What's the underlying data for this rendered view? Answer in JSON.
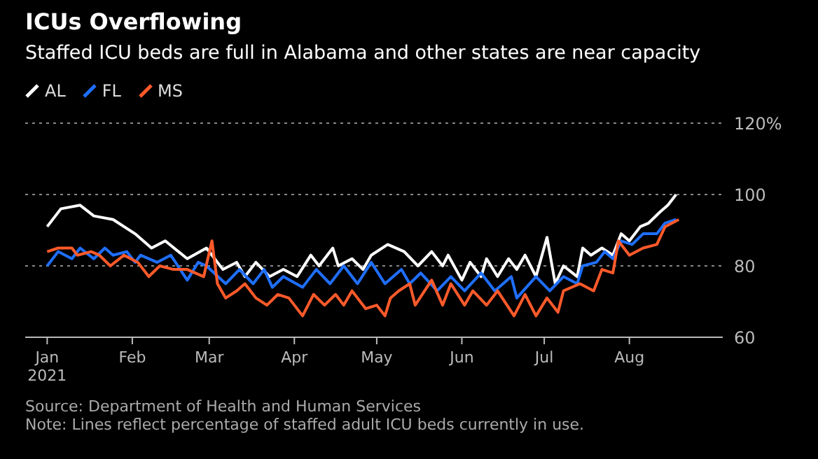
{
  "chart_data": {
    "type": "line",
    "title": "ICUs Overflowing",
    "subtitle": "Staffed ICU beds are full in Alabama and other states are near capacity",
    "annotations": [
      "Source: Department of Health and Human Services",
      "Note: Lines reflect percentage of staffed adult ICU beds currently in use."
    ],
    "legend": "top left",
    "grid": "y",
    "line_style": "solid",
    "xlim": [
      "2020-12-24",
      "2021-09-04"
    ],
    "xticks": [
      {
        "value": "2021-01-01",
        "label": "Jan\n2021"
      },
      {
        "value": "2021-02-01",
        "label": "Feb"
      },
      {
        "value": "2021-03-01",
        "label": "Mar"
      },
      {
        "value": "2021-04-01",
        "label": "Apr"
      },
      {
        "value": "2021-05-01",
        "label": "May"
      },
      {
        "value": "2021-06-01",
        "label": "Jun"
      },
      {
        "value": "2021-07-01",
        "label": "Jul"
      },
      {
        "value": "2021-08-01",
        "label": "Aug"
      }
    ],
    "ylim": [
      60,
      120
    ],
    "yticks": [
      60,
      80,
      100,
      {
        "value": 120,
        "label": "120%"
      }
    ],
    "series": [
      {
        "name": "AL",
        "color": "#ffffff",
        "x": [
          "2021-01-01",
          "2021-01-06",
          "2021-01-13",
          "2021-01-18",
          "2021-01-25",
          "2021-02-02",
          "2021-02-08",
          "2021-02-13",
          "2021-02-21",
          "2021-02-28",
          "2021-03-06",
          "2021-03-11",
          "2021-03-14",
          "2021-03-18",
          "2021-03-23",
          "2021-03-28",
          "2021-04-02",
          "2021-04-07",
          "2021-04-10",
          "2021-04-15",
          "2021-04-17",
          "2021-04-22",
          "2021-04-26",
          "2021-04-29",
          "2021-05-05",
          "2021-05-11",
          "2021-05-16",
          "2021-05-21",
          "2021-05-25",
          "2021-05-27",
          "2021-06-01",
          "2021-06-04",
          "2021-06-08",
          "2021-06-10",
          "2021-06-14",
          "2021-06-18",
          "2021-06-21",
          "2021-06-24",
          "2021-06-28",
          "2021-07-02",
          "2021-07-05",
          "2021-07-08",
          "2021-07-13",
          "2021-07-15",
          "2021-07-18",
          "2021-07-22",
          "2021-07-26",
          "2021-07-29",
          "2021-08-01",
          "2021-08-05",
          "2021-08-08",
          "2021-08-12",
          "2021-08-15",
          "2021-08-18"
        ],
        "values": [
          91,
          96,
          97,
          94,
          93,
          89,
          85,
          87,
          82,
          85,
          79,
          81,
          77,
          81,
          77,
          79,
          77,
          83,
          80,
          85,
          80,
          82,
          79,
          83,
          86,
          84,
          80,
          84,
          80,
          83,
          76,
          81,
          77,
          82,
          77,
          82,
          79,
          83,
          77,
          88,
          75,
          80,
          77,
          85,
          83,
          85,
          83,
          89,
          87,
          91,
          92,
          95,
          97,
          100
        ]
      },
      {
        "name": "FL",
        "color": "#1f6fff",
        "x": [
          "2021-01-01",
          "2021-01-05",
          "2021-01-10",
          "2021-01-13",
          "2021-01-18",
          "2021-01-22",
          "2021-01-25",
          "2021-01-30",
          "2021-02-02",
          "2021-02-04",
          "2021-02-10",
          "2021-02-15",
          "2021-02-21",
          "2021-02-25",
          "2021-02-28",
          "2021-03-07",
          "2021-03-12",
          "2021-03-17",
          "2021-03-21",
          "2021-03-24",
          "2021-03-28",
          "2021-04-04",
          "2021-04-09",
          "2021-04-14",
          "2021-04-19",
          "2021-04-24",
          "2021-04-29",
          "2021-05-04",
          "2021-05-10",
          "2021-05-13",
          "2021-05-17",
          "2021-05-23",
          "2021-05-28",
          "2021-06-02",
          "2021-06-08",
          "2021-06-13",
          "2021-06-19",
          "2021-06-21",
          "2021-06-28",
          "2021-07-03",
          "2021-07-08",
          "2021-07-13",
          "2021-07-15",
          "2021-07-20",
          "2021-07-23",
          "2021-07-26",
          "2021-07-29",
          "2021-08-02",
          "2021-08-06",
          "2021-08-11",
          "2021-08-14",
          "2021-08-18"
        ],
        "values": [
          80,
          84,
          82,
          85,
          82,
          85,
          83,
          84,
          81,
          83,
          81,
          83,
          76,
          81,
          80,
          75,
          79,
          75,
          79,
          74,
          77,
          74,
          79,
          75,
          80,
          75,
          81,
          75,
          79,
          75,
          78,
          73,
          77,
          73,
          78,
          73,
          77,
          71,
          77,
          73,
          77,
          75,
          80,
          81,
          84,
          82,
          87,
          86,
          89,
          89,
          92,
          93
        ]
      },
      {
        "name": "MS",
        "color": "#ff5a2a",
        "x": [
          "2021-01-01",
          "2021-01-05",
          "2021-01-10",
          "2021-01-12",
          "2021-01-17",
          "2021-01-20",
          "2021-01-24",
          "2021-01-29",
          "2021-02-03",
          "2021-02-07",
          "2021-02-11",
          "2021-02-16",
          "2021-02-21",
          "2021-02-27",
          "2021-03-02",
          "2021-03-04",
          "2021-03-07",
          "2021-03-11",
          "2021-03-14",
          "2021-03-18",
          "2021-03-22",
          "2021-03-26",
          "2021-03-30",
          "2021-04-04",
          "2021-04-08",
          "2021-04-12",
          "2021-04-16",
          "2021-04-19",
          "2021-04-22",
          "2021-04-27",
          "2021-05-01",
          "2021-05-04",
          "2021-05-06",
          "2021-05-09",
          "2021-05-13",
          "2021-05-15",
          "2021-05-21",
          "2021-05-25",
          "2021-05-28",
          "2021-06-02",
          "2021-06-05",
          "2021-06-10",
          "2021-06-14",
          "2021-06-20",
          "2021-06-24",
          "2021-06-28",
          "2021-07-02",
          "2021-07-06",
          "2021-07-08",
          "2021-07-14",
          "2021-07-19",
          "2021-07-22",
          "2021-07-26",
          "2021-07-28",
          "2021-08-01",
          "2021-08-06",
          "2021-08-11",
          "2021-08-14",
          "2021-08-19"
        ],
        "values": [
          84,
          85,
          85,
          83,
          84,
          83,
          80,
          83,
          81,
          77,
          80,
          79,
          79,
          77,
          87,
          75,
          71,
          73,
          75,
          71,
          69,
          72,
          71,
          66,
          72,
          69,
          72,
          69,
          73,
          68,
          69,
          66,
          71,
          73,
          75,
          69,
          76,
          69,
          75,
          69,
          73,
          69,
          73,
          66,
          72,
          66,
          71,
          67,
          73,
          75,
          73,
          79,
          78,
          87,
          83,
          85,
          86,
          91,
          93
        ]
      }
    ]
  }
}
